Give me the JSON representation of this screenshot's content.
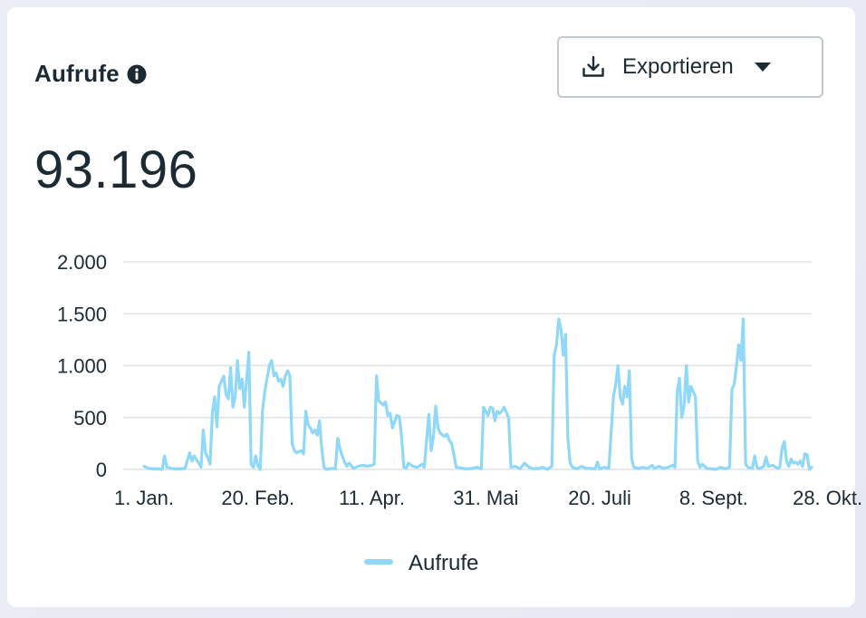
{
  "header": {
    "title": "Aufrufe",
    "info_icon": "info-icon"
  },
  "export": {
    "label": "Exportieren",
    "icon": "download-icon",
    "caret": "caret-down-icon"
  },
  "summary": {
    "total": "93.196"
  },
  "colors": {
    "series": "#8fd8f8",
    "grid": "#dfe2e6",
    "text": "#1c2b33"
  },
  "chart_data": {
    "type": "line",
    "title": "",
    "xlabel": "",
    "ylabel": "",
    "ylim": [
      0,
      2000
    ],
    "y_ticks": [
      0,
      500,
      1000,
      1500,
      2000
    ],
    "y_tick_labels": [
      "0",
      "500",
      "1.000",
      "1.500",
      "2.000"
    ],
    "x_ticks": [
      0,
      50,
      100,
      150,
      200,
      250,
      300
    ],
    "x_tick_labels": [
      "1. Jan.",
      "20. Feb.",
      "11. Apr.",
      "31. Mai",
      "20. Juli",
      "8. Sept.",
      "28. Okt."
    ],
    "grid": true,
    "legend": "bottom",
    "series": [
      {
        "name": "Aufrufe",
        "points": [
          [
            0,
            30
          ],
          [
            2,
            10
          ],
          [
            4,
            5
          ],
          [
            6,
            5
          ],
          [
            8,
            0
          ],
          [
            9,
            130
          ],
          [
            10,
            20
          ],
          [
            12,
            10
          ],
          [
            14,
            5
          ],
          [
            16,
            5
          ],
          [
            18,
            10
          ],
          [
            20,
            160
          ],
          [
            21,
            80
          ],
          [
            22,
            130
          ],
          [
            24,
            60
          ],
          [
            25,
            20
          ],
          [
            26,
            380
          ],
          [
            27,
            160
          ],
          [
            28,
            110
          ],
          [
            29,
            50
          ],
          [
            30,
            550
          ],
          [
            31,
            700
          ],
          [
            32,
            410
          ],
          [
            33,
            800
          ],
          [
            34,
            850
          ],
          [
            35,
            900
          ],
          [
            36,
            720
          ],
          [
            37,
            680
          ],
          [
            38,
            980
          ],
          [
            39,
            600
          ],
          [
            40,
            700
          ],
          [
            41,
            1050
          ],
          [
            42,
            780
          ],
          [
            43,
            870
          ],
          [
            44,
            600
          ],
          [
            45,
            860
          ],
          [
            46,
            1130
          ],
          [
            47,
            50
          ],
          [
            48,
            20
          ],
          [
            49,
            130
          ],
          [
            50,
            30
          ],
          [
            51,
            0
          ],
          [
            52,
            570
          ],
          [
            53,
            750
          ],
          [
            55,
            1000
          ],
          [
            56,
            1050
          ],
          [
            57,
            900
          ],
          [
            58,
            930
          ],
          [
            59,
            850
          ],
          [
            60,
            870
          ],
          [
            61,
            800
          ],
          [
            62,
            900
          ],
          [
            63,
            950
          ],
          [
            64,
            900
          ],
          [
            65,
            250
          ],
          [
            66,
            180
          ],
          [
            67,
            160
          ],
          [
            68,
            170
          ],
          [
            69,
            180
          ],
          [
            70,
            150
          ],
          [
            71,
            560
          ],
          [
            72,
            430
          ],
          [
            73,
            400
          ],
          [
            74,
            350
          ],
          [
            75,
            380
          ],
          [
            76,
            330
          ],
          [
            77,
            470
          ],
          [
            78,
            200
          ],
          [
            79,
            20
          ],
          [
            80,
            0
          ],
          [
            82,
            10
          ],
          [
            84,
            5
          ],
          [
            85,
            300
          ],
          [
            86,
            200
          ],
          [
            87,
            130
          ],
          [
            88,
            70
          ],
          [
            89,
            30
          ],
          [
            90,
            60
          ],
          [
            92,
            10
          ],
          [
            94,
            30
          ],
          [
            96,
            40
          ],
          [
            98,
            30
          ],
          [
            100,
            40
          ],
          [
            101,
            50
          ],
          [
            102,
            900
          ],
          [
            103,
            660
          ],
          [
            104,
            640
          ],
          [
            105,
            620
          ],
          [
            106,
            650
          ],
          [
            107,
            520
          ],
          [
            108,
            540
          ],
          [
            109,
            400
          ],
          [
            110,
            460
          ],
          [
            111,
            520
          ],
          [
            112,
            510
          ],
          [
            113,
            330
          ],
          [
            114,
            20
          ],
          [
            115,
            10
          ],
          [
            116,
            60
          ],
          [
            118,
            30
          ],
          [
            120,
            20
          ],
          [
            122,
            50
          ],
          [
            123,
            20
          ],
          [
            125,
            530
          ],
          [
            126,
            180
          ],
          [
            127,
            320
          ],
          [
            128,
            610
          ],
          [
            129,
            400
          ],
          [
            130,
            350
          ],
          [
            131,
            330
          ],
          [
            132,
            320
          ],
          [
            133,
            340
          ],
          [
            134,
            280
          ],
          [
            135,
            250
          ],
          [
            136,
            140
          ],
          [
            137,
            20
          ],
          [
            140,
            10
          ],
          [
            142,
            5
          ],
          [
            144,
            10
          ],
          [
            146,
            20
          ],
          [
            148,
            5
          ],
          [
            149,
            600
          ],
          [
            150,
            560
          ],
          [
            151,
            520
          ],
          [
            152,
            600
          ],
          [
            153,
            590
          ],
          [
            154,
            470
          ],
          [
            155,
            560
          ],
          [
            156,
            540
          ],
          [
            157,
            560
          ],
          [
            158,
            600
          ],
          [
            159,
            550
          ],
          [
            160,
            500
          ],
          [
            161,
            20
          ],
          [
            163,
            30
          ],
          [
            165,
            5
          ],
          [
            167,
            60
          ],
          [
            169,
            20
          ],
          [
            171,
            5
          ],
          [
            173,
            10
          ],
          [
            175,
            20
          ],
          [
            177,
            0
          ],
          [
            179,
            30
          ],
          [
            180,
            1100
          ],
          [
            181,
            1200
          ],
          [
            182,
            1450
          ],
          [
            183,
            1350
          ],
          [
            184,
            1100
          ],
          [
            185,
            1300
          ],
          [
            186,
            300
          ],
          [
            187,
            60
          ],
          [
            188,
            20
          ],
          [
            190,
            5
          ],
          [
            192,
            30
          ],
          [
            194,
            10
          ],
          [
            196,
            10
          ],
          [
            198,
            5
          ],
          [
            199,
            70
          ],
          [
            200,
            5
          ],
          [
            202,
            20
          ],
          [
            204,
            10
          ],
          [
            206,
            700
          ],
          [
            207,
            820
          ],
          [
            208,
            1000
          ],
          [
            209,
            700
          ],
          [
            210,
            630
          ],
          [
            211,
            800
          ],
          [
            212,
            700
          ],
          [
            213,
            950
          ],
          [
            214,
            100
          ],
          [
            215,
            20
          ],
          [
            217,
            10
          ],
          [
            219,
            20
          ],
          [
            221,
            10
          ],
          [
            223,
            40
          ],
          [
            224,
            10
          ],
          [
            226,
            30
          ],
          [
            228,
            10
          ],
          [
            230,
            20
          ],
          [
            232,
            40
          ],
          [
            233,
            20
          ],
          [
            234,
            750
          ],
          [
            235,
            880
          ],
          [
            236,
            500
          ],
          [
            237,
            600
          ],
          [
            238,
            1000
          ],
          [
            239,
            650
          ],
          [
            240,
            800
          ],
          [
            241,
            750
          ],
          [
            242,
            700
          ],
          [
            243,
            80
          ],
          [
            244,
            20
          ],
          [
            245,
            50
          ],
          [
            247,
            10
          ],
          [
            249,
            5
          ],
          [
            251,
            0
          ],
          [
            253,
            20
          ],
          [
            255,
            5
          ],
          [
            257,
            20
          ],
          [
            258,
            770
          ],
          [
            259,
            820
          ],
          [
            260,
            1000
          ],
          [
            261,
            1200
          ],
          [
            262,
            1050
          ],
          [
            263,
            1450
          ],
          [
            264,
            50
          ],
          [
            265,
            20
          ],
          [
            267,
            10
          ],
          [
            268,
            130
          ],
          [
            269,
            20
          ],
          [
            270,
            5
          ],
          [
            272,
            30
          ],
          [
            273,
            120
          ],
          [
            274,
            30
          ],
          [
            276,
            40
          ],
          [
            278,
            10
          ],
          [
            279,
            20
          ],
          [
            280,
            200
          ],
          [
            281,
            270
          ],
          [
            282,
            80
          ],
          [
            283,
            30
          ],
          [
            284,
            100
          ],
          [
            285,
            60
          ],
          [
            286,
            70
          ],
          [
            287,
            50
          ],
          [
            288,
            80
          ],
          [
            289,
            30
          ],
          [
            290,
            150
          ],
          [
            291,
            140
          ],
          [
            292,
            0
          ],
          [
            293,
            20
          ]
        ]
      }
    ]
  },
  "legend": {
    "label": "Aufrufe"
  }
}
